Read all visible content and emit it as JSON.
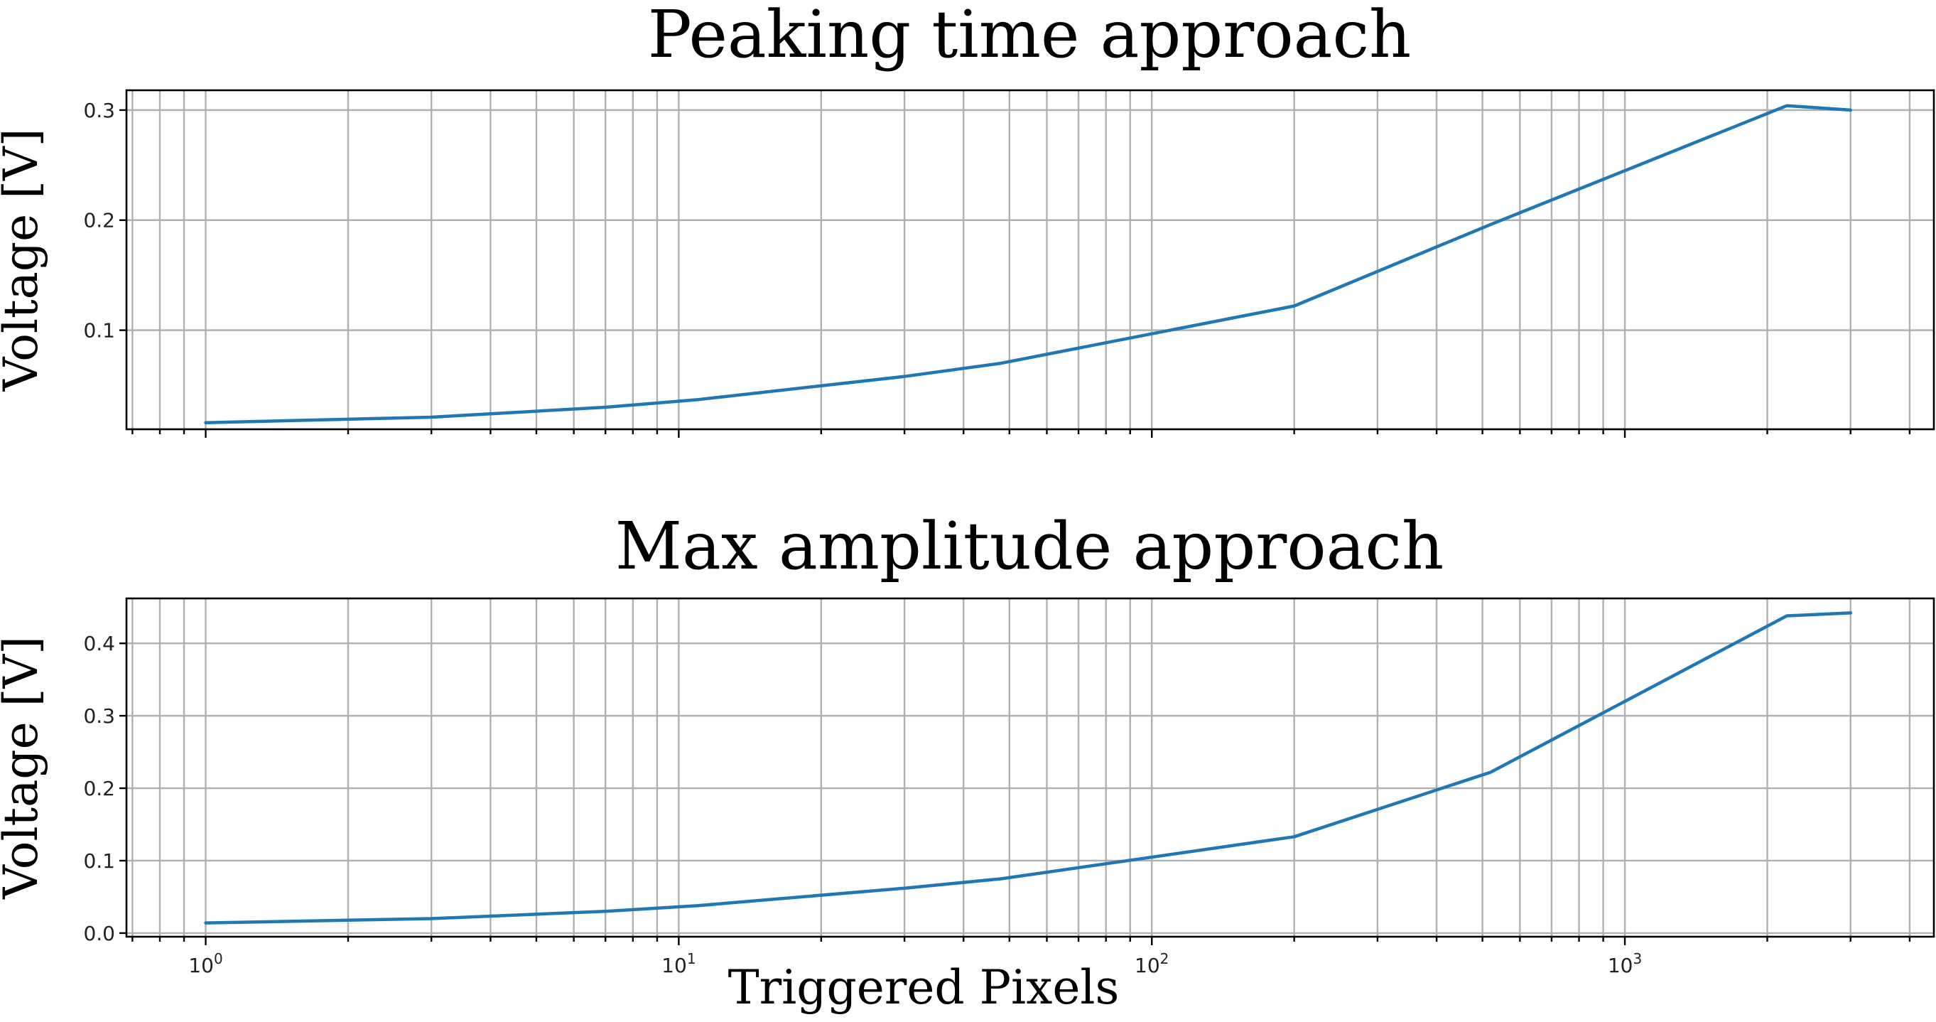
{
  "chart_data": [
    {
      "type": "line",
      "title": "Peaking time approach",
      "xlabel": "",
      "ylabel": "Voltage [V]",
      "xscale": "log",
      "xlim": [
        0.68,
        4500
      ],
      "ylim": [
        0.01,
        0.318
      ],
      "grid": true,
      "xticks": [
        1,
        10,
        100,
        1000
      ],
      "xtick_labels_visible": false,
      "yticks": [
        0.1,
        0.2,
        0.3
      ],
      "ytick_labels": [
        "0.1",
        "0.2",
        "0.3"
      ],
      "color": "#1f77b4",
      "x": [
        1,
        3,
        7,
        11,
        30,
        48,
        200,
        520,
        2200,
        3000
      ],
      "y": [
        0.016,
        0.021,
        0.03,
        0.037,
        0.058,
        0.07,
        0.122,
        0.196,
        0.304,
        0.3
      ]
    },
    {
      "type": "line",
      "title": "Max amplitude approach",
      "xlabel": "Triggered Pixels",
      "ylabel": "Voltage [V]",
      "xscale": "log",
      "xlim": [
        0.68,
        4500
      ],
      "ylim": [
        -0.005,
        0.462
      ],
      "grid": true,
      "xticks": [
        1,
        10,
        100,
        1000
      ],
      "xtick_labels": [
        "10^0",
        "10^1",
        "10^2",
        "10^3"
      ],
      "yticks": [
        0.0,
        0.1,
        0.2,
        0.3,
        0.4
      ],
      "ytick_labels": [
        "0.0",
        "0.1",
        "0.2",
        "0.3",
        "0.4"
      ],
      "color": "#1f77b4",
      "x": [
        1,
        3,
        7,
        11,
        30,
        48,
        200,
        520,
        2200,
        3000
      ],
      "y": [
        0.014,
        0.02,
        0.03,
        0.038,
        0.062,
        0.075,
        0.133,
        0.222,
        0.438,
        0.442
      ]
    }
  ]
}
